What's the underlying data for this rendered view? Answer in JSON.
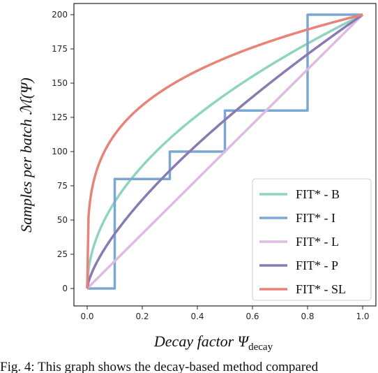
{
  "chart_data": {
    "type": "line",
    "xlabel": "Decay factor Ψ",
    "xlabel_sub": "decay",
    "ylabel": "Samples per batch ℳ(Ψ)",
    "xlim": [
      0,
      1
    ],
    "ylim": [
      0,
      200
    ],
    "xticks": [
      "0.0",
      "0.2",
      "0.4",
      "0.6",
      "0.8",
      "1.0"
    ],
    "yticks": [
      "0",
      "25",
      "50",
      "75",
      "100",
      "125",
      "150",
      "175",
      "200"
    ],
    "grid": false,
    "legend_position": "lower-right",
    "series": [
      {
        "name": "FIT* - B",
        "color": "#8fd4c1",
        "kind": "curve",
        "exponent": 0.5,
        "points": [
          [
            0,
            0
          ],
          [
            0.1,
            63
          ],
          [
            0.2,
            89
          ],
          [
            0.4,
            126
          ],
          [
            0.6,
            155
          ],
          [
            0.8,
            179
          ],
          [
            1.0,
            200
          ]
        ]
      },
      {
        "name": "FIT* - I",
        "color": "#7ba7d3",
        "kind": "step",
        "points": [
          [
            0,
            0
          ],
          [
            0.1,
            0
          ],
          [
            0.1,
            80
          ],
          [
            0.3,
            80
          ],
          [
            0.3,
            100
          ],
          [
            0.5,
            100
          ],
          [
            0.5,
            130
          ],
          [
            0.8,
            130
          ],
          [
            0.8,
            200
          ],
          [
            1.0,
            200
          ]
        ]
      },
      {
        "name": "FIT* - L",
        "color": "#dcbce0",
        "kind": "curve",
        "exponent": 1.0,
        "points": [
          [
            0,
            0
          ],
          [
            0.5,
            100
          ],
          [
            1.0,
            200
          ]
        ]
      },
      {
        "name": "FIT* - P",
        "color": "#8a7ab3",
        "kind": "curve",
        "exponent": 0.7,
        "points": [
          [
            0,
            0
          ],
          [
            0.1,
            40
          ],
          [
            0.2,
            65
          ],
          [
            0.4,
            105
          ],
          [
            0.6,
            140
          ],
          [
            0.8,
            171
          ],
          [
            1.0,
            200
          ]
        ]
      },
      {
        "name": "FIT* - SL",
        "color": "#e8837a",
        "kind": "curve",
        "exponent": 0.25,
        "points": [
          [
            0,
            0
          ],
          [
            0.1,
            112
          ],
          [
            0.2,
            134
          ],
          [
            0.4,
            159
          ],
          [
            0.6,
            176
          ],
          [
            0.8,
            189
          ],
          [
            1.0,
            200
          ]
        ]
      }
    ]
  },
  "caption": "Fig. 4: This graph shows the decay-based method compared"
}
